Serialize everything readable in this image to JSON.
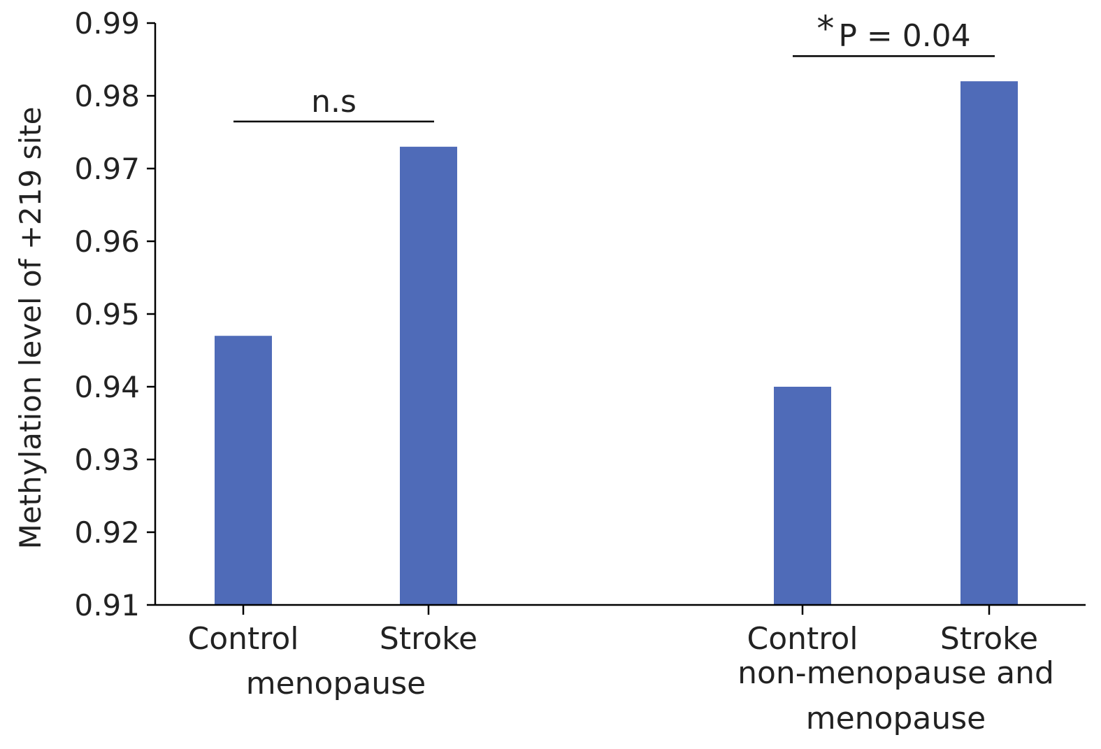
{
  "chart_data": {
    "type": "bar",
    "ylabel": "Methylation level of +219 site",
    "ylim": [
      0.91,
      0.99
    ],
    "yticks": [
      "0.91",
      "0.92",
      "0.93",
      "0.94",
      "0.95",
      "0.96",
      "0.97",
      "0.98",
      "0.99"
    ],
    "bar_color": "#4f6bb8",
    "groups": [
      {
        "label_lines": [
          "menopause"
        ],
        "categories": [
          "Control",
          "Stroke"
        ],
        "values": [
          0.947,
          0.973
        ],
        "significance": {
          "star": "",
          "text": "n.s"
        }
      },
      {
        "label_lines": [
          "non-menopause and",
          "menopause"
        ],
        "categories": [
          "Control",
          "Stroke"
        ],
        "values": [
          0.94,
          0.982
        ],
        "significance": {
          "star": "*",
          "text": "P = 0.04"
        }
      }
    ]
  }
}
